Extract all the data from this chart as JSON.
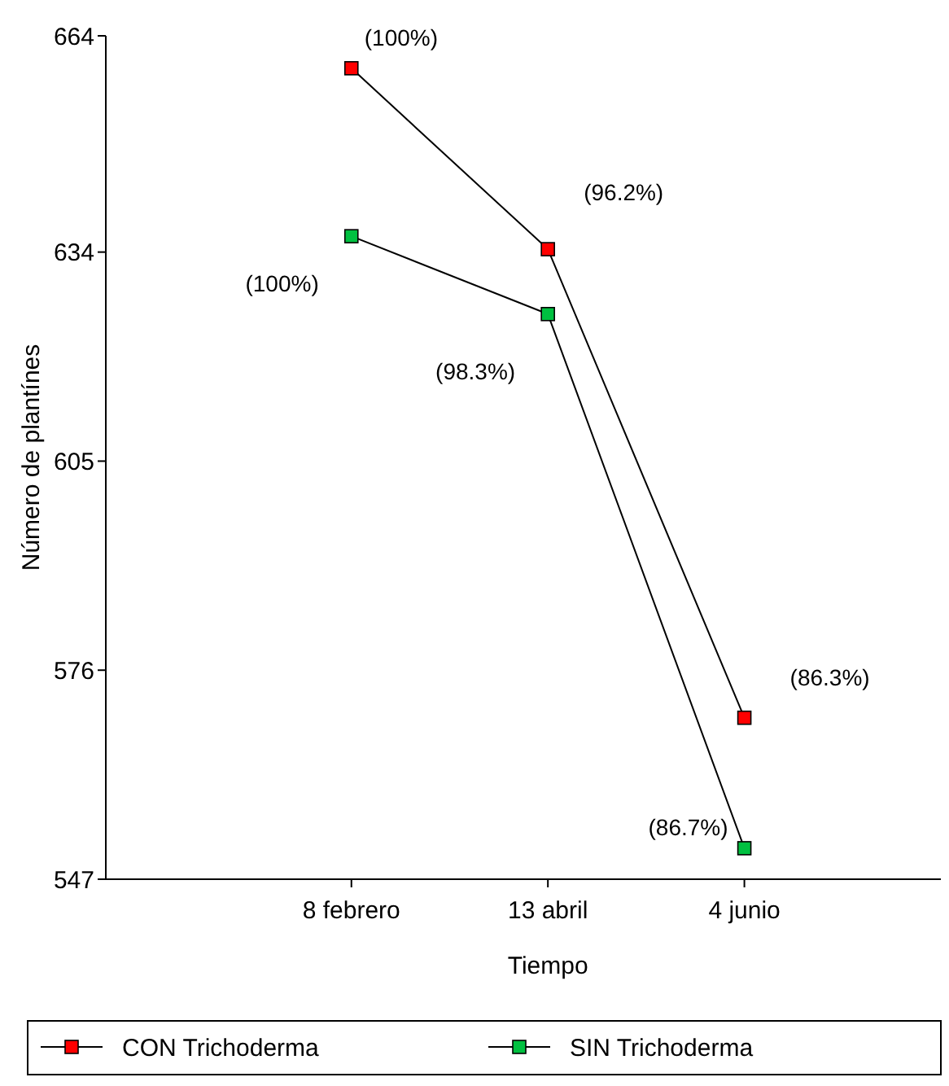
{
  "chart_data": {
    "type": "line",
    "xlabel": "Tiempo",
    "ylabel": "Número de plantínes",
    "categories": [
      "8 febrero",
      "13 abril",
      "4 junio"
    ],
    "series": [
      {
        "name": "CON Trichoderma",
        "color": "#ff0000",
        "values": [
          659.5,
          634.4,
          569.4
        ]
      },
      {
        "name": "SIN Trichoderma",
        "color": "#00c040",
        "values": [
          636.2,
          625.4,
          551.3
        ]
      }
    ],
    "ylim": [
      547,
      664
    ],
    "yticks": [
      547,
      576,
      605,
      634,
      664
    ],
    "marker": "square",
    "line_style": "solid",
    "grid": false,
    "legend": "bottom",
    "annotations": [
      {
        "text": "(100%)",
        "x": "8 febrero",
        "y": 659.5
      },
      {
        "text": "(96.2%)",
        "x": "13 abril",
        "y": 634.4
      },
      {
        "text": "(86.3%)",
        "x": "4 junio",
        "y": 569.4
      },
      {
        "text": "(100%)",
        "x": "8 febrero",
        "y": 636.2
      },
      {
        "text": "(98.3%)",
        "x": "13 abril",
        "y": 625.4
      },
      {
        "text": "(86.7%)",
        "x": "4 junio",
        "y": 551.3
      }
    ]
  }
}
